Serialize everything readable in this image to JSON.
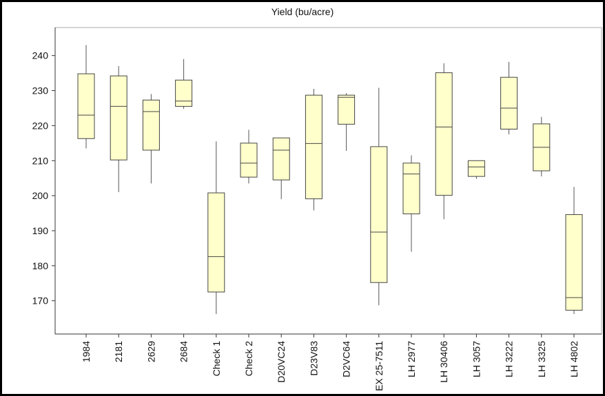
{
  "chart_data": {
    "type": "boxplot",
    "title": "Yield (bu/acre)",
    "xlabel": "",
    "ylabel": "",
    "ylim": [
      160.5,
      248
    ],
    "yticks": [
      170,
      180,
      190,
      200,
      210,
      220,
      230,
      240
    ],
    "grid": false,
    "legend": "none",
    "colors": {
      "box_fill": "#ffffcc",
      "box_stroke": "#444444",
      "whisker": "#555555",
      "axis": "#333333",
      "plot_border": "#aaaaaa"
    },
    "categories": [
      "1984",
      "2181",
      "2629",
      "2684",
      "Check 1",
      "Check 2",
      "D20VC24",
      "D23V83",
      "D2VC64",
      "EX 25-7511",
      "LH 2977",
      "LH 30406",
      "LH 3057",
      "LH 3222",
      "LH 3325",
      "LH 4802"
    ],
    "boxes": [
      {
        "min": 213.5,
        "q1": 216.3,
        "median": 223.0,
        "q3": 234.8,
        "max": 243.0
      },
      {
        "min": 201.0,
        "q1": 210.2,
        "median": 225.5,
        "q3": 234.2,
        "max": 237.0
      },
      {
        "min": 203.5,
        "q1": 213.0,
        "median": 224.0,
        "q3": 227.3,
        "max": 229.0
      },
      {
        "min": 224.8,
        "q1": 225.5,
        "median": 227.0,
        "q3": 233.0,
        "max": 239.0
      },
      {
        "min": 166.2,
        "q1": 172.5,
        "median": 182.6,
        "q3": 200.8,
        "max": 215.5
      },
      {
        "min": 203.5,
        "q1": 205.3,
        "median": 209.3,
        "q3": 215.0,
        "max": 218.8
      },
      {
        "min": 199.0,
        "q1": 204.5,
        "median": 213.0,
        "q3": 216.5,
        "max": 216.5
      },
      {
        "min": 195.8,
        "q1": 199.1,
        "median": 214.9,
        "q3": 228.7,
        "max": 230.5
      },
      {
        "min": 212.8,
        "q1": 220.4,
        "median": 228.1,
        "q3": 228.7,
        "max": 229.3
      },
      {
        "min": 168.7,
        "q1": 175.2,
        "median": 189.6,
        "q3": 214.0,
        "max": 230.8
      },
      {
        "min": 184.0,
        "q1": 194.8,
        "median": 206.2,
        "q3": 209.3,
        "max": 211.5
      },
      {
        "min": 193.3,
        "q1": 200.1,
        "median": 219.6,
        "q3": 235.1,
        "max": 237.8
      },
      {
        "min": 204.8,
        "q1": 205.5,
        "median": 208.2,
        "q3": 210.0,
        "max": 210.0
      },
      {
        "min": 217.5,
        "q1": 219.0,
        "median": 225.0,
        "q3": 233.8,
        "max": 238.2
      },
      {
        "min": 205.5,
        "q1": 207.1,
        "median": 213.8,
        "q3": 220.5,
        "max": 222.5
      },
      {
        "min": 166.2,
        "q1": 167.3,
        "median": 170.9,
        "q3": 194.6,
        "max": 202.5
      }
    ]
  }
}
